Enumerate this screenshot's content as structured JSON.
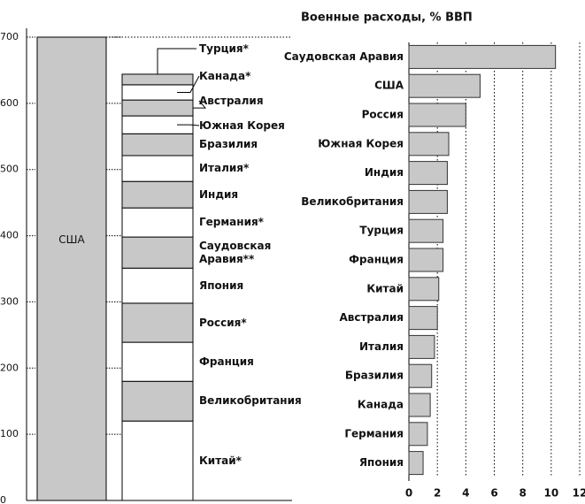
{
  "chart_data": [
    {
      "type": "stacked-column",
      "ylim": [
        0,
        700
      ],
      "yticks": [
        0,
        100,
        200,
        300,
        400,
        500,
        600,
        700
      ],
      "bar": {
        "name": "США",
        "value": 700,
        "color": "#c8c8c8"
      },
      "series": [
        {
          "name": "Китай*",
          "color": "#ffffff",
          "values": [
            120
          ]
        },
        {
          "name": "Великобритания",
          "color": "#c8c8c8",
          "values": [
            60
          ]
        },
        {
          "name": "Франция",
          "color": "#ffffff",
          "values": [
            59
          ]
        },
        {
          "name": "Россия*",
          "color": "#c8c8c8",
          "values": [
            59
          ]
        },
        {
          "name": "Япония",
          "color": "#ffffff",
          "values": [
            53
          ]
        },
        {
          "name": "Саудовская Аравия**",
          "color": "#c8c8c8",
          "values": [
            47
          ]
        },
        {
          "name": "Германия*",
          "color": "#ffffff",
          "values": [
            44
          ]
        },
        {
          "name": "Индия",
          "color": "#c8c8c8",
          "values": [
            40
          ]
        },
        {
          "name": "Италия*",
          "color": "#ffffff",
          "values": [
            39
          ]
        },
        {
          "name": "Бразилия",
          "color": "#c8c8c8",
          "values": [
            33
          ]
        },
        {
          "name": "Южная Корея",
          "color": "#ffffff",
          "values": [
            27
          ]
        },
        {
          "name": "Австралия",
          "color": "#c8c8c8",
          "values": [
            24
          ]
        },
        {
          "name": "Канада*",
          "color": "#ffffff",
          "values": [
            23
          ]
        },
        {
          "name": "Турция*",
          "color": "#c8c8c8",
          "values": [
            16
          ]
        }
      ]
    },
    {
      "type": "hbar",
      "title": "Военные расходы, % ВВП",
      "categories": [
        "Саудовская Аравия",
        "США",
        "Россия",
        "Южная Корея",
        "Индия",
        "Великобритания",
        "Турция",
        "Франция",
        "Китай",
        "Австралия",
        "Италия",
        "Бразилия",
        "Канада",
        "Германия",
        "Япония"
      ],
      "values": [
        10.3,
        5.0,
        4.0,
        2.8,
        2.7,
        2.7,
        2.4,
        2.4,
        2.1,
        2.0,
        1.8,
        1.6,
        1.5,
        1.3,
        1.0
      ],
      "color": "#c8c8c8",
      "xlim": [
        0,
        12
      ],
      "xticks": [
        0,
        2,
        4,
        6,
        8,
        10,
        12
      ],
      "grid": true
    }
  ]
}
